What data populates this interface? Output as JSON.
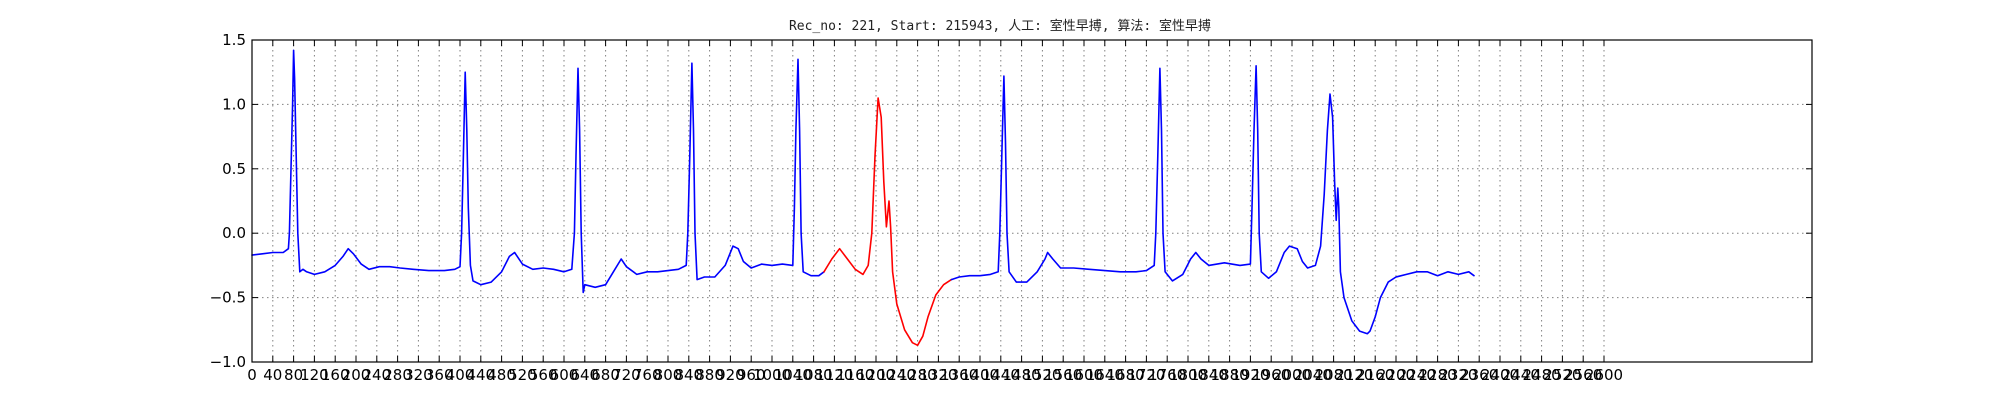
{
  "chart_data": {
    "type": "line",
    "title": "Rec_no: 221, Start: 215943, 人工: 室性早搏, 算法: 室性早搏",
    "xlabel": "",
    "ylabel": "",
    "xlim": [
      0,
      3000
    ],
    "ylim": [
      -1.0,
      1.5
    ],
    "grid": true,
    "legend": "none",
    "yticks": [
      -1.0,
      -0.5,
      0.0,
      0.5,
      1.0,
      1.5
    ],
    "ytick_labels": [
      "−1.0",
      "−0.5",
      "0.0",
      "0.5",
      "1.0",
      "1.5"
    ],
    "xticks": [
      0,
      40,
      80,
      120,
      160,
      200,
      240,
      280,
      320,
      360,
      400,
      440,
      480,
      520,
      560,
      600,
      640,
      680,
      720,
      760,
      800,
      840,
      880,
      920,
      960,
      1000,
      1040,
      1080,
      1120,
      1160,
      1200,
      1240,
      1280,
      1320,
      1360,
      1400,
      1440,
      1480,
      1520,
      1560,
      1600,
      1640,
      1680,
      1720,
      1760,
      1800,
      1840,
      1880,
      1920,
      1960,
      2000,
      2040,
      2080,
      2120,
      2160,
      2200,
      2240,
      2280,
      2320,
      2360,
      2400,
      2440,
      2480,
      2520,
      2560,
      2600
    ],
    "series": [
      {
        "color": "#0000ff",
        "points": [
          [
            0,
            -0.17
          ],
          [
            20,
            -0.16
          ],
          [
            40,
            -0.15
          ],
          [
            60,
            -0.15
          ],
          [
            70,
            -0.12
          ],
          [
            72,
            0.0
          ],
          [
            75,
            0.5
          ],
          [
            78,
            1.0
          ],
          [
            80,
            1.42
          ],
          [
            82,
            1.2
          ],
          [
            85,
            0.6
          ],
          [
            88,
            0.0
          ],
          [
            92,
            -0.3
          ],
          [
            98,
            -0.28
          ],
          [
            105,
            -0.3
          ],
          [
            120,
            -0.32
          ],
          [
            140,
            -0.3
          ],
          [
            160,
            -0.25
          ],
          [
            175,
            -0.18
          ],
          [
            185,
            -0.12
          ],
          [
            195,
            -0.16
          ],
          [
            210,
            -0.24
          ],
          [
            225,
            -0.28
          ],
          [
            245,
            -0.26
          ],
          [
            265,
            -0.26
          ],
          [
            285,
            -0.27
          ],
          [
            310,
            -0.28
          ],
          [
            340,
            -0.29
          ],
          [
            370,
            -0.29
          ],
          [
            390,
            -0.28
          ],
          [
            400,
            -0.26
          ],
          [
            403,
            0.0
          ],
          [
            406,
            0.5
          ],
          [
            410,
            1.25
          ],
          [
            413,
            0.8
          ],
          [
            416,
            0.2
          ],
          [
            420,
            -0.25
          ],
          [
            425,
            -0.37
          ],
          [
            440,
            -0.4
          ],
          [
            460,
            -0.38
          ],
          [
            480,
            -0.3
          ],
          [
            495,
            -0.18
          ],
          [
            505,
            -0.15
          ],
          [
            520,
            -0.24
          ],
          [
            540,
            -0.28
          ],
          [
            560,
            -0.27
          ],
          [
            580,
            -0.28
          ],
          [
            600,
            -0.3
          ],
          [
            615,
            -0.28
          ],
          [
            620,
            0.0
          ],
          [
            623,
            0.6
          ],
          [
            627,
            1.28
          ],
          [
            630,
            0.8
          ],
          [
            633,
            0.0
          ],
          [
            637,
            -0.46
          ],
          [
            640,
            -0.4
          ],
          [
            660,
            -0.42
          ],
          [
            680,
            -0.4
          ],
          [
            695,
            -0.3
          ],
          [
            710,
            -0.2
          ],
          [
            720,
            -0.26
          ],
          [
            740,
            -0.32
          ],
          [
            760,
            -0.3
          ],
          [
            780,
            -0.3
          ],
          [
            800,
            -0.29
          ],
          [
            820,
            -0.28
          ],
          [
            835,
            -0.25
          ],
          [
            838,
            0.0
          ],
          [
            842,
            0.6
          ],
          [
            846,
            1.32
          ],
          [
            849,
            0.8
          ],
          [
            852,
            0.0
          ],
          [
            856,
            -0.36
          ],
          [
            870,
            -0.34
          ],
          [
            890,
            -0.34
          ],
          [
            910,
            -0.25
          ],
          [
            925,
            -0.1
          ],
          [
            935,
            -0.12
          ],
          [
            945,
            -0.22
          ],
          [
            960,
            -0.27
          ],
          [
            980,
            -0.24
          ],
          [
            1000,
            -0.25
          ],
          [
            1020,
            -0.24
          ],
          [
            1040,
            -0.25
          ],
          [
            1043,
            0.2
          ],
          [
            1046,
            0.8
          ],
          [
            1050,
            1.35
          ],
          [
            1053,
            0.8
          ],
          [
            1056,
            0.0
          ],
          [
            1060,
            -0.3
          ],
          [
            1075,
            -0.33
          ],
          [
            1090,
            -0.33
          ],
          [
            1100,
            -0.3
          ]
        ]
      },
      {
        "color": "#ff0000",
        "points": [
          [
            1100,
            -0.3
          ],
          [
            1115,
            -0.2
          ],
          [
            1130,
            -0.12
          ],
          [
            1145,
            -0.2
          ],
          [
            1160,
            -0.28
          ],
          [
            1175,
            -0.32
          ],
          [
            1185,
            -0.25
          ],
          [
            1192,
            0.0
          ],
          [
            1198,
            0.6
          ],
          [
            1204,
            1.05
          ],
          [
            1210,
            0.9
          ],
          [
            1215,
            0.4
          ],
          [
            1220,
            0.05
          ],
          [
            1225,
            0.25
          ],
          [
            1228,
            0.05
          ],
          [
            1232,
            -0.3
          ],
          [
            1240,
            -0.55
          ],
          [
            1255,
            -0.75
          ],
          [
            1270,
            -0.85
          ],
          [
            1280,
            -0.87
          ],
          [
            1290,
            -0.8
          ],
          [
            1300,
            -0.65
          ],
          [
            1315,
            -0.48
          ],
          [
            1330,
            -0.4
          ],
          [
            1345,
            -0.36
          ]
        ]
      },
      {
        "color": "#0000ff",
        "points": [
          [
            1345,
            -0.36
          ],
          [
            1360,
            -0.34
          ],
          [
            1380,
            -0.33
          ],
          [
            1400,
            -0.33
          ],
          [
            1420,
            -0.32
          ],
          [
            1435,
            -0.3
          ],
          [
            1438,
            0.0
          ],
          [
            1442,
            0.6
          ],
          [
            1446,
            1.22
          ],
          [
            1449,
            0.7
          ],
          [
            1452,
            0.0
          ],
          [
            1456,
            -0.3
          ],
          [
            1470,
            -0.38
          ],
          [
            1490,
            -0.38
          ],
          [
            1510,
            -0.3
          ],
          [
            1525,
            -0.2
          ],
          [
            1530,
            -0.15
          ],
          [
            1540,
            -0.2
          ],
          [
            1555,
            -0.27
          ],
          [
            1580,
            -0.27
          ],
          [
            1610,
            -0.28
          ],
          [
            1640,
            -0.29
          ],
          [
            1670,
            -0.3
          ],
          [
            1700,
            -0.3
          ],
          [
            1720,
            -0.29
          ],
          [
            1735,
            -0.25
          ],
          [
            1738,
            0.0
          ],
          [
            1742,
            0.6
          ],
          [
            1746,
            1.28
          ],
          [
            1749,
            0.8
          ],
          [
            1752,
            0.0
          ],
          [
            1756,
            -0.3
          ],
          [
            1770,
            -0.37
          ],
          [
            1790,
            -0.32
          ],
          [
            1805,
            -0.2
          ],
          [
            1815,
            -0.15
          ],
          [
            1825,
            -0.2
          ],
          [
            1840,
            -0.25
          ],
          [
            1870,
            -0.23
          ],
          [
            1900,
            -0.25
          ],
          [
            1920,
            -0.24
          ],
          [
            1923,
            0.2
          ],
          [
            1927,
            0.8
          ],
          [
            1931,
            1.3
          ],
          [
            1934,
            0.8
          ],
          [
            1937,
            0.0
          ],
          [
            1941,
            -0.3
          ],
          [
            1955,
            -0.35
          ],
          [
            1970,
            -0.3
          ],
          [
            1985,
            -0.15
          ],
          [
            1995,
            -0.1
          ],
          [
            2010,
            -0.12
          ],
          [
            2020,
            -0.22
          ],
          [
            2030,
            -0.27
          ],
          [
            2045,
            -0.25
          ],
          [
            2055,
            -0.1
          ],
          [
            2062,
            0.3
          ],
          [
            2068,
            0.8
          ],
          [
            2073,
            1.08
          ],
          [
            2078,
            0.9
          ],
          [
            2082,
            0.4
          ],
          [
            2085,
            0.1
          ],
          [
            2088,
            0.35
          ],
          [
            2090,
            0.2
          ],
          [
            2093,
            -0.3
          ],
          [
            2100,
            -0.5
          ],
          [
            2115,
            -0.68
          ],
          [
            2130,
            -0.76
          ],
          [
            2145,
            -0.78
          ],
          [
            2150,
            -0.76
          ],
          [
            2160,
            -0.65
          ],
          [
            2170,
            -0.5
          ],
          [
            2185,
            -0.38
          ],
          [
            2200,
            -0.34
          ],
          [
            2220,
            -0.32
          ],
          [
            2240,
            -0.3
          ],
          [
            2260,
            -0.3
          ],
          [
            2280,
            -0.33
          ],
          [
            2300,
            -0.3
          ],
          [
            2320,
            -0.32
          ],
          [
            2340,
            -0.3
          ],
          [
            2350,
            -0.33
          ]
        ]
      }
    ]
  }
}
